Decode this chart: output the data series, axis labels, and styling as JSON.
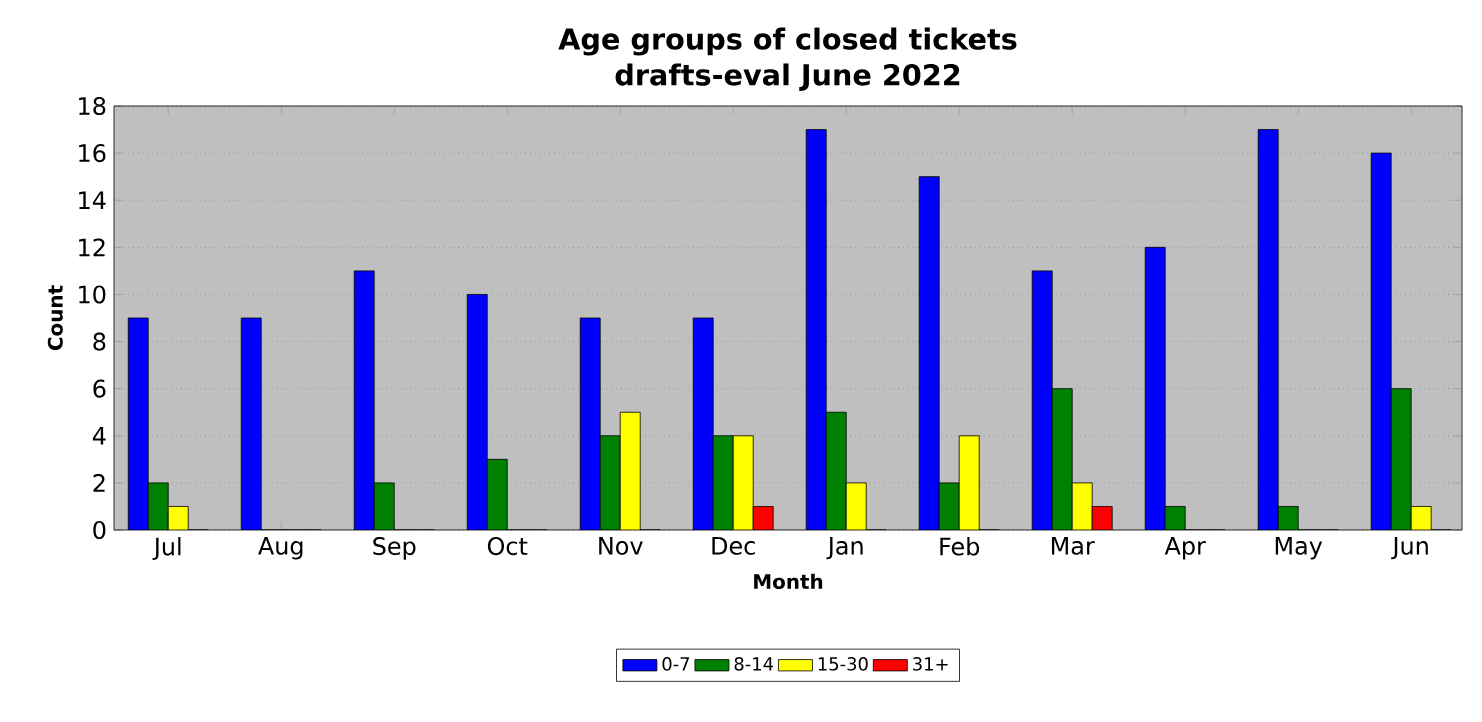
{
  "chart_data": {
    "type": "bar",
    "title": "Age groups of closed tickets\ndrafts-eval June 2022",
    "xlabel": "Month",
    "ylabel": "Count",
    "categories": [
      "Jul",
      "Aug",
      "Sep",
      "Oct",
      "Nov",
      "Dec",
      "Jan",
      "Feb",
      "Mar",
      "Apr",
      "May",
      "Jun"
    ],
    "series": [
      {
        "name": "0-7",
        "color": "#0000ff",
        "values": [
          9,
          9,
          11,
          10,
          9,
          9,
          17,
          15,
          11,
          12,
          17,
          16
        ]
      },
      {
        "name": "8-14",
        "color": "#008000",
        "values": [
          2,
          0,
          2,
          3,
          4,
          4,
          5,
          2,
          6,
          1,
          1,
          6
        ]
      },
      {
        "name": "15-30",
        "color": "#ffff00",
        "values": [
          1,
          0,
          0,
          0,
          5,
          4,
          2,
          4,
          2,
          0,
          0,
          1
        ]
      },
      {
        "name": "31+",
        "color": "#ff0000",
        "values": [
          0,
          0,
          0,
          0,
          0,
          1,
          0,
          0,
          1,
          0,
          0,
          0
        ]
      }
    ],
    "ylim": [
      0,
      18
    ],
    "yticks": [
      0,
      2,
      4,
      6,
      8,
      10,
      12,
      14,
      16,
      18
    ],
    "grid": "y",
    "legend": "bottom"
  }
}
